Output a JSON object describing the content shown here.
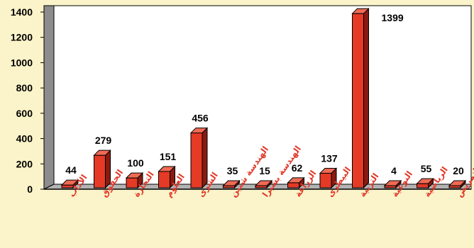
{
  "chart_data": {
    "type": "bar",
    "categories": [
      "الآداب",
      "الحقوق",
      "التجارة",
      "العلوم",
      "الشرى",
      "الهندسة شبين",
      "الهندسة بشبرا",
      "الزراعة",
      "البيطرى",
      "التربية",
      "النوعية",
      "الرياضية",
      "التمريض"
    ],
    "values": [
      44,
      279,
      100,
      151,
      456,
      35,
      15,
      62,
      137,
      1399,
      4,
      55,
      20
    ],
    "data_labels": [
      "44",
      "279",
      "100",
      "151",
      "456",
      "35",
      "15",
      "62",
      "137",
      "1399",
      "4",
      "55",
      "20"
    ],
    "yticks": [
      "0",
      "200",
      "400",
      "600",
      "800",
      "1000",
      "1200",
      "1400"
    ],
    "ylim": [
      0,
      1400
    ],
    "title": "",
    "xlabel": "",
    "ylabel": "",
    "grid": false,
    "legend": "none"
  },
  "colors": {
    "background": "#fbf3c9",
    "plot_background": "#ffffff",
    "bar_front": "#e53a26",
    "bar_side": "#8a1a10",
    "bar_top": "#f06a55",
    "wall": "#8c8c8c",
    "floor": "#b3b3b3",
    "axis": "#000000",
    "category_label": "#e23a2a"
  }
}
